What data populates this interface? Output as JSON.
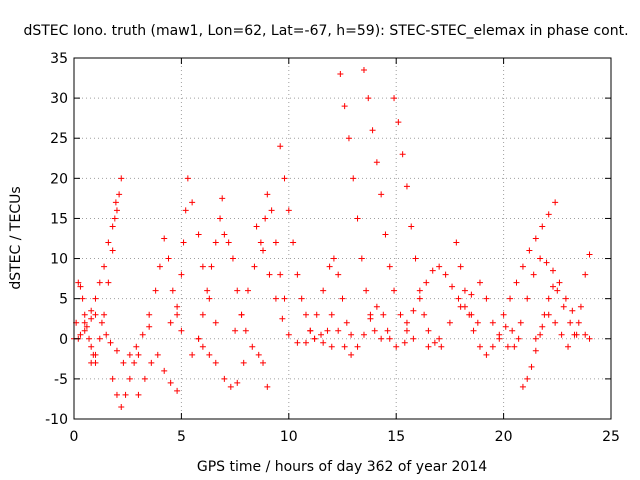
{
  "chart_data": {
    "type": "scatter",
    "title": "dSTEC Iono. truth (maw1, Lon=62, Lat=-67, h=59): STEC-STEC_elemax in phase cont.",
    "xlabel": "GPS time / hours of day 362 of year 2014",
    "ylabel": "dSTEC  / TECUs",
    "xlim": [
      0,
      25
    ],
    "ylim": [
      -10,
      35
    ],
    "xticks": [
      0,
      5,
      10,
      15,
      20,
      25
    ],
    "yticks": [
      -10,
      -5,
      0,
      5,
      10,
      15,
      20,
      25,
      30,
      35
    ],
    "grid": true,
    "marker": "+",
    "color": "#ff0000",
    "series": [
      {
        "values": [
          [
            0.0,
            0.0
          ],
          [
            0.1,
            2.0
          ],
          [
            0.2,
            7.0
          ],
          [
            0.3,
            6.5
          ],
          [
            0.4,
            5.0
          ],
          [
            0.5,
            3.0
          ],
          [
            0.6,
            1.5
          ],
          [
            0.7,
            0.0
          ],
          [
            0.8,
            -1.0
          ],
          [
            0.9,
            -2.0
          ],
          [
            1.0,
            -3.0
          ]
        ]
      },
      {
        "values": [
          [
            0.3,
            0.5
          ],
          [
            0.5,
            2.0
          ],
          [
            0.8,
            3.5
          ],
          [
            1.0,
            5.0
          ],
          [
            1.2,
            7.0
          ],
          [
            1.4,
            9.0
          ],
          [
            1.6,
            12.0
          ],
          [
            1.8,
            14.0
          ],
          [
            2.0,
            16.0
          ],
          [
            2.1,
            18.0
          ],
          [
            2.2,
            20.0
          ]
        ]
      },
      {
        "values": [
          [
            0.8,
            -3.0
          ],
          [
            1.0,
            -2.0
          ],
          [
            1.2,
            0.0
          ],
          [
            1.4,
            3.0
          ],
          [
            1.6,
            7.0
          ],
          [
            1.8,
            11.0
          ],
          [
            1.9,
            15.0
          ],
          [
            1.95,
            17.0
          ]
        ]
      },
      {
        "values": [
          [
            0.2,
            0.0
          ],
          [
            0.5,
            1.0
          ],
          [
            0.8,
            2.5
          ],
          [
            1.0,
            3.0
          ],
          [
            1.3,
            2.0
          ],
          [
            1.5,
            0.5
          ],
          [
            1.7,
            -0.5
          ],
          [
            2.0,
            -1.5
          ],
          [
            2.3,
            -3.0
          ],
          [
            2.6,
            -2.0
          ],
          [
            2.9,
            -1.0
          ],
          [
            3.2,
            0.5
          ],
          [
            3.5,
            1.5
          ]
        ]
      },
      {
        "values": [
          [
            1.8,
            -5.0
          ],
          [
            2.0,
            -7.0
          ],
          [
            2.2,
            -8.5
          ],
          [
            2.4,
            -7.0
          ],
          [
            2.6,
            -5.0
          ],
          [
            2.8,
            -3.0
          ],
          [
            3.0,
            -2.0
          ]
        ]
      },
      {
        "values": [
          [
            3.0,
            -7.0
          ],
          [
            3.3,
            -5.0
          ],
          [
            3.6,
            -3.0
          ],
          [
            3.9,
            -2.0
          ],
          [
            4.2,
            -4.0
          ],
          [
            4.5,
            -5.5
          ],
          [
            4.8,
            -6.5
          ]
        ]
      },
      {
        "values": [
          [
            3.5,
            3.0
          ],
          [
            3.8,
            6.0
          ],
          [
            4.0,
            9.0
          ],
          [
            4.2,
            12.5
          ],
          [
            4.4,
            10.0
          ],
          [
            4.6,
            6.0
          ],
          [
            4.8,
            3.0
          ],
          [
            5.0,
            1.0
          ]
        ]
      },
      {
        "values": [
          [
            4.5,
            2.0
          ],
          [
            4.8,
            4.0
          ],
          [
            5.0,
            8.0
          ],
          [
            5.1,
            12.0
          ],
          [
            5.2,
            16.0
          ],
          [
            5.3,
            20.0
          ],
          [
            5.5,
            17.0
          ],
          [
            5.8,
            13.0
          ],
          [
            6.0,
            9.0
          ],
          [
            6.3,
            5.0
          ],
          [
            6.6,
            2.0
          ]
        ]
      },
      {
        "values": [
          [
            5.5,
            -2.0
          ],
          [
            5.8,
            0.0
          ],
          [
            6.0,
            3.0
          ],
          [
            6.2,
            6.0
          ],
          [
            6.4,
            9.0
          ],
          [
            6.6,
            12.0
          ],
          [
            6.8,
            15.0
          ],
          [
            6.9,
            17.5
          ]
        ]
      },
      {
        "values": [
          [
            5.8,
            0.0
          ],
          [
            6.0,
            -1.0
          ],
          [
            6.3,
            -2.0
          ],
          [
            6.6,
            -3.0
          ],
          [
            7.0,
            -5.0
          ],
          [
            7.3,
            -6.0
          ],
          [
            7.6,
            -5.5
          ],
          [
            7.9,
            -3.0
          ]
        ]
      },
      {
        "values": [
          [
            7.0,
            13.0
          ],
          [
            7.2,
            12.0
          ],
          [
            7.4,
            10.0
          ],
          [
            7.6,
            6.0
          ],
          [
            7.8,
            3.0
          ],
          [
            8.0,
            1.0
          ],
          [
            8.3,
            -1.0
          ],
          [
            8.6,
            -2.0
          ],
          [
            8.8,
            -3.0
          ],
          [
            9.0,
            -6.0
          ]
        ]
      },
      {
        "values": [
          [
            7.5,
            1.0
          ],
          [
            7.8,
            3.0
          ],
          [
            8.1,
            6.0
          ],
          [
            8.4,
            9.0
          ],
          [
            8.7,
            12.0
          ],
          [
            8.9,
            15.0
          ],
          [
            9.0,
            18.0
          ],
          [
            9.2,
            16.0
          ],
          [
            9.4,
            12.0
          ],
          [
            9.6,
            8.0
          ],
          [
            9.8,
            5.0
          ]
        ]
      },
      {
        "values": [
          [
            9.6,
            24.0
          ],
          [
            9.8,
            20.0
          ],
          [
            10.0,
            16.0
          ],
          [
            10.2,
            12.0
          ],
          [
            10.4,
            8.0
          ],
          [
            10.6,
            5.0
          ],
          [
            10.8,
            3.0
          ],
          [
            11.0,
            1.0
          ],
          [
            11.2,
            0.0
          ],
          [
            11.5,
            0.5
          ],
          [
            11.8,
            1.0
          ]
        ]
      },
      {
        "values": [
          [
            8.5,
            14.0
          ],
          [
            8.8,
            11.0
          ],
          [
            9.1,
            8.0
          ],
          [
            9.4,
            5.0
          ],
          [
            9.7,
            2.5
          ],
          [
            10.0,
            0.5
          ],
          [
            10.4,
            -0.5
          ],
          [
            10.8,
            -0.5
          ],
          [
            11.2,
            0.0
          ],
          [
            11.6,
            -0.5
          ],
          [
            12.0,
            -1.0
          ]
        ]
      },
      {
        "values": [
          [
            11.0,
            1.0
          ],
          [
            11.3,
            3.0
          ],
          [
            11.6,
            6.0
          ],
          [
            11.9,
            9.0
          ],
          [
            12.1,
            10.0
          ],
          [
            12.3,
            8.0
          ],
          [
            12.5,
            5.0
          ],
          [
            12.7,
            2.0
          ],
          [
            12.9,
            0.5
          ]
        ]
      },
      {
        "values": [
          [
            12.4,
            33.0
          ],
          [
            12.6,
            29.0
          ],
          [
            12.8,
            25.0
          ],
          [
            13.0,
            20.0
          ],
          [
            13.2,
            15.0
          ],
          [
            13.4,
            10.0
          ],
          [
            13.6,
            6.0
          ],
          [
            13.8,
            3.0
          ],
          [
            14.0,
            1.0
          ],
          [
            14.3,
            0.0
          ],
          [
            14.6,
            1.0
          ]
        ]
      },
      {
        "values": [
          [
            13.5,
            33.5
          ],
          [
            13.7,
            30.0
          ],
          [
            13.9,
            26.0
          ],
          [
            14.1,
            22.0
          ],
          [
            14.3,
            18.0
          ],
          [
            14.5,
            13.0
          ],
          [
            14.7,
            9.0
          ],
          [
            14.9,
            6.0
          ],
          [
            15.2,
            3.0
          ],
          [
            15.5,
            1.0
          ],
          [
            15.8,
            0.0
          ]
        ]
      },
      {
        "values": [
          [
            12.0,
            3.0
          ],
          [
            12.3,
            1.0
          ],
          [
            12.6,
            -1.0
          ],
          [
            12.9,
            -2.0
          ],
          [
            13.2,
            -1.0
          ],
          [
            13.5,
            0.5
          ],
          [
            13.8,
            2.5
          ],
          [
            14.1,
            4.0
          ],
          [
            14.4,
            3.0
          ],
          [
            14.7,
            0.0
          ],
          [
            15.0,
            -1.0
          ],
          [
            15.4,
            -0.5
          ]
        ]
      },
      {
        "values": [
          [
            14.9,
            30.0
          ],
          [
            15.1,
            27.0
          ],
          [
            15.3,
            23.0
          ],
          [
            15.5,
            19.0
          ],
          [
            15.7,
            14.0
          ],
          [
            15.9,
            10.0
          ],
          [
            16.1,
            6.0
          ],
          [
            16.3,
            3.0
          ],
          [
            16.5,
            1.0
          ],
          [
            16.8,
            -0.5
          ],
          [
            17.1,
            -1.0
          ]
        ]
      },
      {
        "values": [
          [
            15.5,
            2.0
          ],
          [
            15.8,
            3.5
          ],
          [
            16.1,
            5.0
          ],
          [
            16.4,
            7.0
          ],
          [
            16.7,
            8.5
          ],
          [
            17.0,
            9.0
          ],
          [
            17.3,
            8.0
          ],
          [
            17.6,
            6.5
          ],
          [
            17.9,
            5.0
          ],
          [
            18.2,
            4.0
          ],
          [
            18.5,
            3.0
          ],
          [
            18.8,
            2.0
          ]
        ]
      },
      {
        "values": [
          [
            16.5,
            -1.0
          ],
          [
            17.0,
            0.0
          ],
          [
            17.5,
            2.0
          ],
          [
            18.0,
            4.0
          ],
          [
            18.5,
            5.5
          ],
          [
            18.9,
            7.0
          ],
          [
            19.2,
            5.0
          ],
          [
            19.5,
            2.0
          ],
          [
            19.8,
            0.0
          ],
          [
            20.2,
            -1.0
          ]
        ]
      },
      {
        "values": [
          [
            17.8,
            12.0
          ],
          [
            18.0,
            9.0
          ],
          [
            18.2,
            6.0
          ],
          [
            18.4,
            3.0
          ],
          [
            18.6,
            1.0
          ],
          [
            18.9,
            -1.0
          ],
          [
            19.2,
            -2.0
          ],
          [
            19.5,
            -1.0
          ],
          [
            19.8,
            0.5
          ],
          [
            20.1,
            1.5
          ],
          [
            20.4,
            1.0
          ],
          [
            20.7,
            0.0
          ]
        ]
      },
      {
        "values": [
          [
            20.0,
            3.0
          ],
          [
            20.3,
            5.0
          ],
          [
            20.6,
            7.0
          ],
          [
            20.9,
            9.0
          ],
          [
            21.2,
            11.0
          ],
          [
            21.5,
            12.5
          ],
          [
            21.8,
            14.0
          ],
          [
            22.1,
            15.5
          ],
          [
            22.4,
            17.0
          ]
        ]
      },
      {
        "values": [
          [
            20.9,
            -6.0
          ],
          [
            21.1,
            -5.0
          ],
          [
            21.3,
            -3.5
          ],
          [
            21.5,
            -1.5
          ],
          [
            21.7,
            0.5
          ],
          [
            21.9,
            3.0
          ],
          [
            22.1,
            5.0
          ],
          [
            22.3,
            6.5
          ],
          [
            22.5,
            6.0
          ],
          [
            22.8,
            4.0
          ],
          [
            23.1,
            2.0
          ],
          [
            23.4,
            0.5
          ]
        ]
      },
      {
        "values": [
          [
            20.5,
            -1.0
          ],
          [
            20.8,
            2.0
          ],
          [
            21.1,
            5.0
          ],
          [
            21.4,
            8.0
          ],
          [
            21.7,
            10.0
          ],
          [
            22.0,
            9.5
          ],
          [
            22.3,
            8.5
          ],
          [
            22.6,
            7.0
          ],
          [
            22.9,
            5.0
          ],
          [
            23.2,
            3.5
          ],
          [
            23.5,
            2.0
          ],
          [
            23.8,
            0.5
          ],
          [
            24.0,
            0.0
          ]
        ]
      },
      {
        "values": [
          [
            21.5,
            0.0
          ],
          [
            21.8,
            1.5
          ],
          [
            22.1,
            3.0
          ],
          [
            22.4,
            2.0
          ],
          [
            22.7,
            0.5
          ],
          [
            23.0,
            -1.0
          ],
          [
            23.3,
            0.5
          ],
          [
            23.6,
            4.0
          ],
          [
            23.8,
            8.0
          ],
          [
            24.0,
            10.5
          ]
        ]
      }
    ]
  }
}
